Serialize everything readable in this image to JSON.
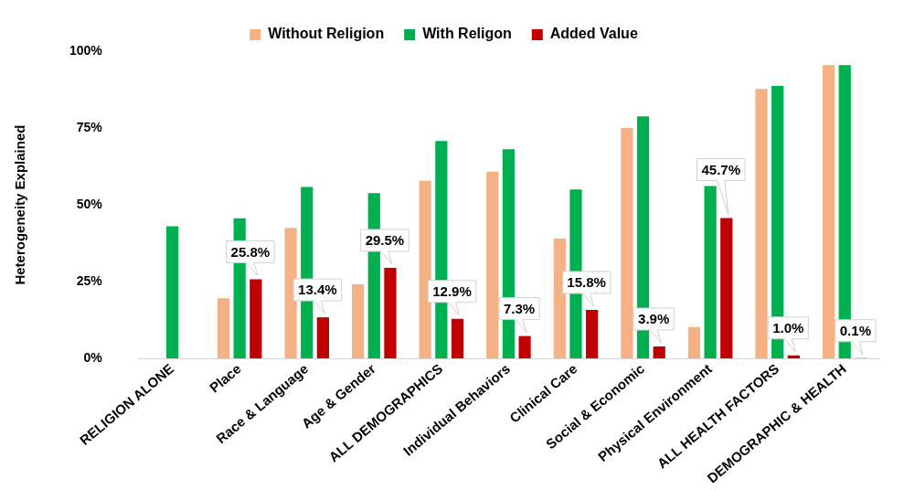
{
  "chart_data": {
    "type": "bar",
    "ylabel": "Heterogeneity Explained",
    "categories": [
      "RELIGION ALONE",
      "Place",
      "Race & Language",
      "Age & Gender",
      "ALL DEMOGRAPHICS",
      "Individual Behaviors",
      "Clinical Care",
      "Social & Economic",
      "Physical Environment",
      "ALL HEALTH FACTORS",
      "DEMOGRAPHIC & HEALTH"
    ],
    "series": [
      {
        "name": "Without Religion",
        "color": "#f4b183",
        "values": [
          null,
          19.6,
          42.5,
          24.1,
          57.8,
          60.8,
          39.0,
          75.0,
          10.2,
          87.7,
          95.5
        ]
      },
      {
        "name": "With Religon",
        "color": "#00b050",
        "values": [
          43.0,
          45.6,
          55.8,
          53.8,
          70.8,
          68.1,
          55.0,
          78.8,
          56.1,
          88.7,
          95.5
        ]
      },
      {
        "name": "Added Value",
        "color": "#c00000",
        "values": [
          null,
          25.8,
          13.4,
          29.5,
          12.9,
          7.3,
          15.8,
          3.9,
          45.7,
          1.0,
          0.1
        ],
        "value_labels": [
          null,
          "25.8%",
          "13.4%",
          "29.5%",
          "12.9%",
          "7.3%",
          "15.8%",
          "3.9%",
          "45.7%",
          "1.0%",
          "0.1%"
        ]
      }
    ],
    "ylim": [
      0,
      100
    ],
    "yticks": [
      {
        "value": 0,
        "label": "0%"
      },
      {
        "value": 25,
        "label": "25%"
      },
      {
        "value": 50,
        "label": "50%"
      },
      {
        "value": 75,
        "label": "75%"
      },
      {
        "value": 100,
        "label": "100%"
      }
    ],
    "grid": false,
    "legend": "top"
  }
}
